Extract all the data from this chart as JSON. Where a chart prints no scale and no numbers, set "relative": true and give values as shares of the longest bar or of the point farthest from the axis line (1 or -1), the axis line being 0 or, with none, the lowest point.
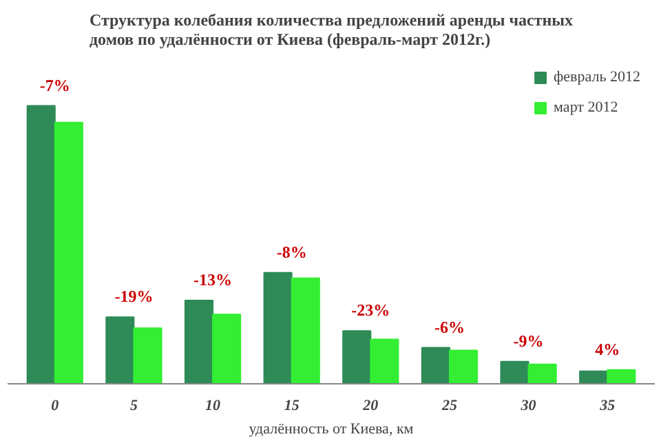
{
  "chart_data": {
    "type": "bar",
    "title": "Структура колебания количества предложений аренды частных домов по удалённости от Киева (февраль-март 2012г.)",
    "xlabel": "удалённость от Киева, км",
    "relative": true,
    "categories": [
      "0",
      "5",
      "10",
      "15",
      "20",
      "25",
      "30",
      "35"
    ],
    "series": [
      {
        "name": "февраль 2012",
        "color": "#2e8b57",
        "values": [
          1,
          0.24,
          0.3,
          0.4,
          0.19,
          0.13,
          0.08,
          0.045
        ]
      },
      {
        "name": "март 2012",
        "color": "#33ee33",
        "values": [
          0.94,
          0.2,
          0.25,
          0.38,
          0.16,
          0.12,
          0.07,
          0.05
        ]
      }
    ],
    "annotations": [
      {
        "text": "-7%",
        "x": "0",
        "y": 1
      },
      {
        "text": "-19%",
        "x": "5",
        "y": 0.24
      },
      {
        "text": "-13%",
        "x": "10",
        "y": 0.3
      },
      {
        "text": "-8%",
        "x": "15",
        "y": 0.4
      },
      {
        "text": "-23%",
        "x": "20",
        "y": 0.19
      },
      {
        "text": "-6%",
        "x": "25",
        "y": 0.13
      },
      {
        "text": "-9%",
        "x": "30",
        "y": 0.08
      },
      {
        "text": "4%",
        "x": "35",
        "y": 0.05
      }
    ],
    "legend": "top right",
    "grid": false
  }
}
